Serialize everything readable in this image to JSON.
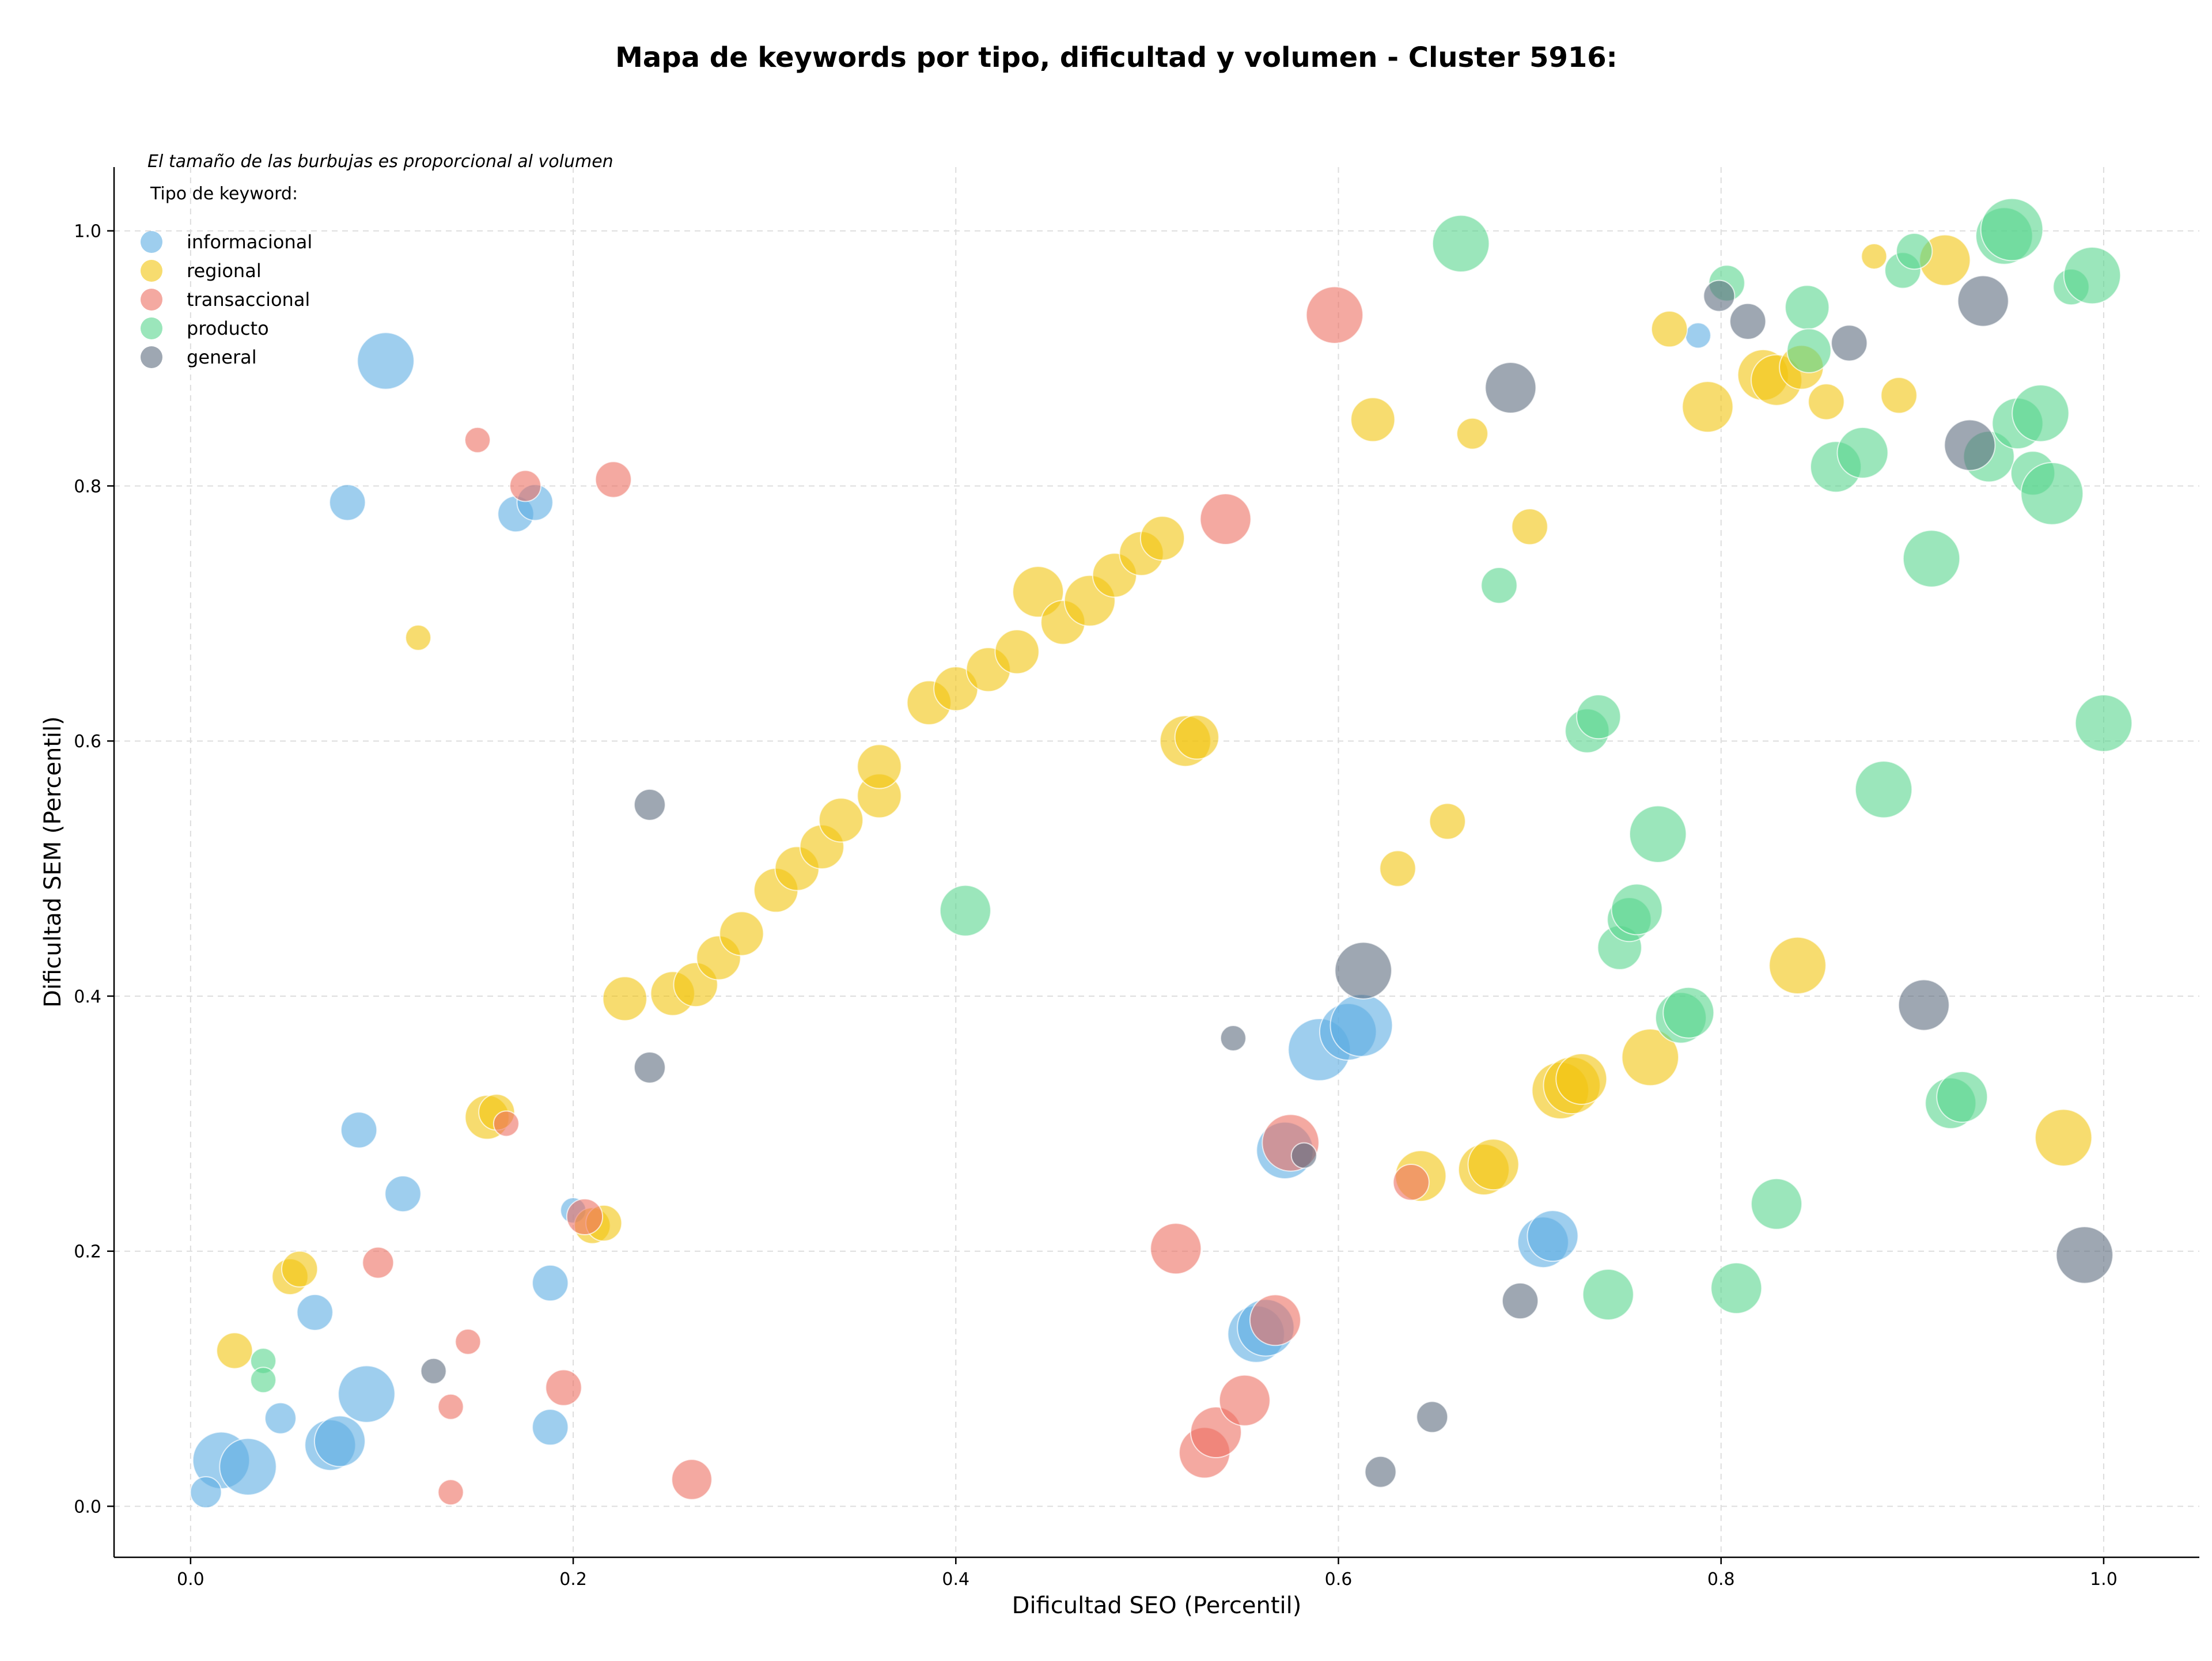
{
  "chart_data": {
    "type": "scatter",
    "title": "Mapa de keywords por tipo, dificultad y volumen - Cluster 5916:",
    "xlabel": "Dificultad SEO (Percentil)",
    "ylabel": "Dificultad SEM (Percentil)",
    "xlim": [
      -0.04,
      1.05
    ],
    "ylim": [
      -0.04,
      1.05
    ],
    "xticks": [
      "0.0",
      "0.2",
      "0.4",
      "0.6",
      "0.8",
      "1.0"
    ],
    "yticks": [
      "0.0",
      "0.2",
      "0.4",
      "0.6",
      "0.8",
      "1.0"
    ],
    "grid": true,
    "size_note": "El tamaño de las burbujas es proporcional al volumen",
    "legend_title": "Tipo de keyword:",
    "legend_position": "top-left",
    "series": [
      {
        "name": "informacional",
        "color": "#5DADE2",
        "points": [
          [
            0.102,
            0.898,
            5
          ],
          [
            0.082,
            0.787,
            2
          ],
          [
            0.17,
            0.778,
            2
          ],
          [
            0.18,
            0.787,
            2
          ],
          [
            0.088,
            0.295,
            2
          ],
          [
            0.111,
            0.245,
            2
          ],
          [
            0.065,
            0.152,
            2
          ],
          [
            0.188,
            0.175,
            2
          ],
          [
            0.2,
            0.232,
            1
          ],
          [
            0.047,
            0.069,
            1.5
          ],
          [
            0.016,
            0.036,
            5
          ],
          [
            0.03,
            0.031,
            5
          ],
          [
            0.073,
            0.048,
            4
          ],
          [
            0.078,
            0.051,
            4
          ],
          [
            0.092,
            0.088,
            5
          ],
          [
            0.008,
            0.011,
            1.5
          ],
          [
            0.188,
            0.062,
            2
          ],
          [
            0.572,
            0.279,
            5
          ],
          [
            0.59,
            0.358,
            6
          ],
          [
            0.605,
            0.372,
            5
          ],
          [
            0.612,
            0.377,
            6
          ],
          [
            0.557,
            0.135,
            5
          ],
          [
            0.562,
            0.14,
            5
          ],
          [
            0.707,
            0.207,
            4
          ],
          [
            0.712,
            0.212,
            4
          ],
          [
            0.788,
            0.918,
            1
          ]
        ]
      },
      {
        "name": "regional",
        "color": "#F1C40F",
        "points": [
          [
            0.119,
            0.681,
            1
          ],
          [
            0.023,
            0.122,
            2
          ],
          [
            0.052,
            0.18,
            2
          ],
          [
            0.057,
            0.186,
            2
          ],
          [
            0.155,
            0.305,
            3
          ],
          [
            0.16,
            0.309,
            2
          ],
          [
            0.21,
            0.22,
            2
          ],
          [
            0.216,
            0.222,
            2
          ],
          [
            0.227,
            0.398,
            3
          ],
          [
            0.252,
            0.402,
            3
          ],
          [
            0.264,
            0.409,
            3
          ],
          [
            0.276,
            0.43,
            3
          ],
          [
            0.288,
            0.449,
            3
          ],
          [
            0.306,
            0.483,
            3
          ],
          [
            0.317,
            0.5,
            3
          ],
          [
            0.33,
            0.517,
            3
          ],
          [
            0.34,
            0.538,
            3
          ],
          [
            0.36,
            0.557,
            3
          ],
          [
            0.36,
            0.58,
            3
          ],
          [
            0.386,
            0.63,
            3
          ],
          [
            0.4,
            0.641,
            3
          ],
          [
            0.417,
            0.656,
            3
          ],
          [
            0.432,
            0.67,
            3
          ],
          [
            0.443,
            0.717,
            4
          ],
          [
            0.456,
            0.693,
            3
          ],
          [
            0.47,
            0.71,
            4
          ],
          [
            0.483,
            0.73,
            3
          ],
          [
            0.497,
            0.747,
            3
          ],
          [
            0.508,
            0.759,
            3
          ],
          [
            0.52,
            0.6,
            4
          ],
          [
            0.526,
            0.603,
            3
          ],
          [
            0.618,
            0.852,
            3
          ],
          [
            0.631,
            0.5,
            2
          ],
          [
            0.657,
            0.537,
            2
          ],
          [
            0.67,
            0.841,
            1.5
          ],
          [
            0.7,
            0.768,
            2
          ],
          [
            0.643,
            0.259,
            4
          ],
          [
            0.676,
            0.264,
            4
          ],
          [
            0.681,
            0.268,
            4
          ],
          [
            0.716,
            0.326,
            5
          ],
          [
            0.722,
            0.33,
            5
          ],
          [
            0.727,
            0.335,
            4
          ],
          [
            0.763,
            0.352,
            5
          ],
          [
            0.773,
            0.923,
            2
          ],
          [
            0.793,
            0.862,
            4
          ],
          [
            0.822,
            0.887,
            4
          ],
          [
            0.829,
            0.883,
            4
          ],
          [
            0.842,
            0.893,
            3
          ],
          [
            0.855,
            0.866,
            2
          ],
          [
            0.84,
            0.424,
            5
          ],
          [
            0.88,
            0.98,
            1
          ],
          [
            0.893,
            0.871,
            2
          ],
          [
            0.917,
            0.977,
            4
          ],
          [
            0.979,
            0.289,
            5
          ]
        ]
      },
      {
        "name": "transaccional",
        "color": "#EC7063",
        "points": [
          [
            0.15,
            0.836,
            1
          ],
          [
            0.175,
            0.8,
            1.5
          ],
          [
            0.221,
            0.805,
            2
          ],
          [
            0.165,
            0.3,
            1
          ],
          [
            0.098,
            0.191,
            1.5
          ],
          [
            0.206,
            0.227,
            2
          ],
          [
            0.145,
            0.129,
            1
          ],
          [
            0.136,
            0.078,
            1
          ],
          [
            0.136,
            0.011,
            1
          ],
          [
            0.195,
            0.093,
            2
          ],
          [
            0.262,
            0.021,
            2.5
          ],
          [
            0.598,
            0.934,
            5
          ],
          [
            0.541,
            0.774,
            4
          ],
          [
            0.515,
            0.202,
            4
          ],
          [
            0.53,
            0.042,
            4
          ],
          [
            0.536,
            0.058,
            4
          ],
          [
            0.551,
            0.083,
            4
          ],
          [
            0.567,
            0.146,
            4
          ],
          [
            0.575,
            0.285,
            5
          ],
          [
            0.638,
            0.254,
            2
          ]
        ]
      },
      {
        "name": "producto",
        "color": "#58D68D",
        "points": [
          [
            0.038,
            0.114,
            1
          ],
          [
            0.038,
            0.099,
            1
          ],
          [
            0.405,
            0.467,
            4
          ],
          [
            0.664,
            0.99,
            5
          ],
          [
            0.684,
            0.722,
            2
          ],
          [
            0.73,
            0.608,
            3
          ],
          [
            0.736,
            0.619,
            3
          ],
          [
            0.741,
            0.166,
            4
          ],
          [
            0.747,
            0.438,
            3
          ],
          [
            0.752,
            0.46,
            3
          ],
          [
            0.756,
            0.468,
            4
          ],
          [
            0.767,
            0.527,
            5
          ],
          [
            0.779,
            0.383,
            4
          ],
          [
            0.783,
            0.387,
            4
          ],
          [
            0.803,
            0.959,
            2
          ],
          [
            0.808,
            0.171,
            4
          ],
          [
            0.829,
            0.237,
            4
          ],
          [
            0.845,
            0.94,
            3
          ],
          [
            0.846,
            0.906,
            3
          ],
          [
            0.86,
            0.815,
            4
          ],
          [
            0.874,
            0.826,
            4
          ],
          [
            0.885,
            0.562,
            5
          ],
          [
            0.895,
            0.969,
            2
          ],
          [
            0.901,
            0.984,
            2
          ],
          [
            0.91,
            0.743,
            5
          ],
          [
            0.92,
            0.316,
            4
          ],
          [
            0.926,
            0.321,
            4
          ],
          [
            0.94,
            0.823,
            4
          ],
          [
            0.948,
            0.996,
            5
          ],
          [
            0.952,
            1.001,
            6
          ],
          [
            0.955,
            0.849,
            4
          ],
          [
            0.963,
            0.81,
            3
          ],
          [
            0.967,
            0.857,
            5
          ],
          [
            0.973,
            0.794,
            6
          ],
          [
            0.983,
            0.956,
            2
          ],
          [
            0.994,
            0.965,
            5
          ],
          [
            1.0,
            0.614,
            5
          ]
        ]
      },
      {
        "name": "general",
        "color": "#5D6D7E",
        "points": [
          [
            0.24,
            0.55,
            1.5
          ],
          [
            0.24,
            0.344,
            1.5
          ],
          [
            0.127,
            0.106,
            1
          ],
          [
            0.545,
            0.367,
            1
          ],
          [
            0.582,
            0.275,
            1
          ],
          [
            0.613,
            0.42,
            5
          ],
          [
            0.622,
            0.027,
            1.5
          ],
          [
            0.649,
            0.07,
            1.5
          ],
          [
            0.69,
            0.877,
            4
          ],
          [
            0.695,
            0.161,
            2
          ],
          [
            0.799,
            0.949,
            1.5
          ],
          [
            0.814,
            0.929,
            2
          ],
          [
            0.867,
            0.912,
            2
          ],
          [
            0.906,
            0.393,
            4
          ],
          [
            0.93,
            0.832,
            4
          ],
          [
            0.937,
            0.945,
            4
          ],
          [
            0.99,
            0.197,
            5
          ]
        ]
      }
    ]
  }
}
